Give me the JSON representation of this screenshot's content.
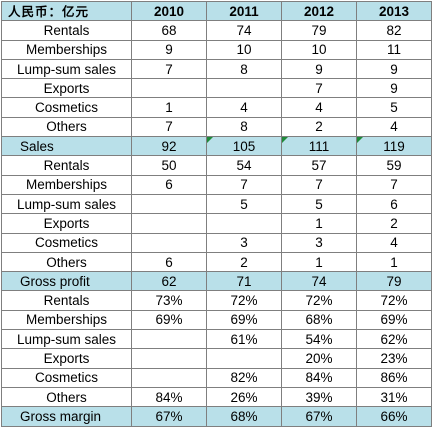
{
  "header": {
    "corner": "人民币：亿元",
    "years": [
      "2010",
      "2011",
      "2012",
      "2013"
    ]
  },
  "rows": [
    {
      "label": "Rentals",
      "values": [
        "68",
        "74",
        "79",
        "82"
      ]
    },
    {
      "label": "Memberships",
      "values": [
        "9",
        "10",
        "10",
        "11"
      ]
    },
    {
      "label": "Lump-sum sales",
      "values": [
        "7",
        "8",
        "9",
        "9"
      ]
    },
    {
      "label": "Exports",
      "values": [
        "",
        "",
        "7",
        "9"
      ]
    },
    {
      "label": "Cosmetics",
      "values": [
        "1",
        "4",
        "4",
        "5"
      ]
    },
    {
      "label": "Others",
      "values": [
        "7",
        "8",
        "2",
        "4"
      ]
    },
    {
      "label": "Sales",
      "values": [
        "92",
        "105",
        "111",
        "119"
      ],
      "highlight": true
    },
    {
      "label": "Rentals",
      "values": [
        "50",
        "54",
        "57",
        "59"
      ]
    },
    {
      "label": "Memberships",
      "values": [
        "6",
        "7",
        "7",
        "7"
      ]
    },
    {
      "label": "Lump-sum sales",
      "values": [
        "",
        "5",
        "5",
        "6"
      ]
    },
    {
      "label": "Exports",
      "values": [
        "",
        "",
        "1",
        "2"
      ]
    },
    {
      "label": "Cosmetics",
      "values": [
        "",
        "3",
        "3",
        "4"
      ]
    },
    {
      "label": "Others",
      "values": [
        "6",
        "2",
        "1",
        "1"
      ]
    },
    {
      "label": "Gross profit",
      "values": [
        "62",
        "71",
        "74",
        "79"
      ],
      "highlight": true
    },
    {
      "label": "Rentals",
      "values": [
        "73%",
        "72%",
        "72%",
        "72%"
      ]
    },
    {
      "label": "Memberships",
      "values": [
        "69%",
        "69%",
        "68%",
        "69%"
      ]
    },
    {
      "label": "Lump-sum sales",
      "values": [
        "",
        "61%",
        "54%",
        "62%"
      ]
    },
    {
      "label": "Exports",
      "values": [
        "",
        "",
        "20%",
        "23%"
      ]
    },
    {
      "label": "Cosmetics",
      "values": [
        "",
        "82%",
        "84%",
        "86%"
      ]
    },
    {
      "label": "Others",
      "values": [
        "84%",
        "26%",
        "39%",
        "31%"
      ]
    },
    {
      "label": "Gross margin",
      "values": [
        "67%",
        "68%",
        "67%",
        "66%"
      ],
      "highlight": true
    }
  ]
}
